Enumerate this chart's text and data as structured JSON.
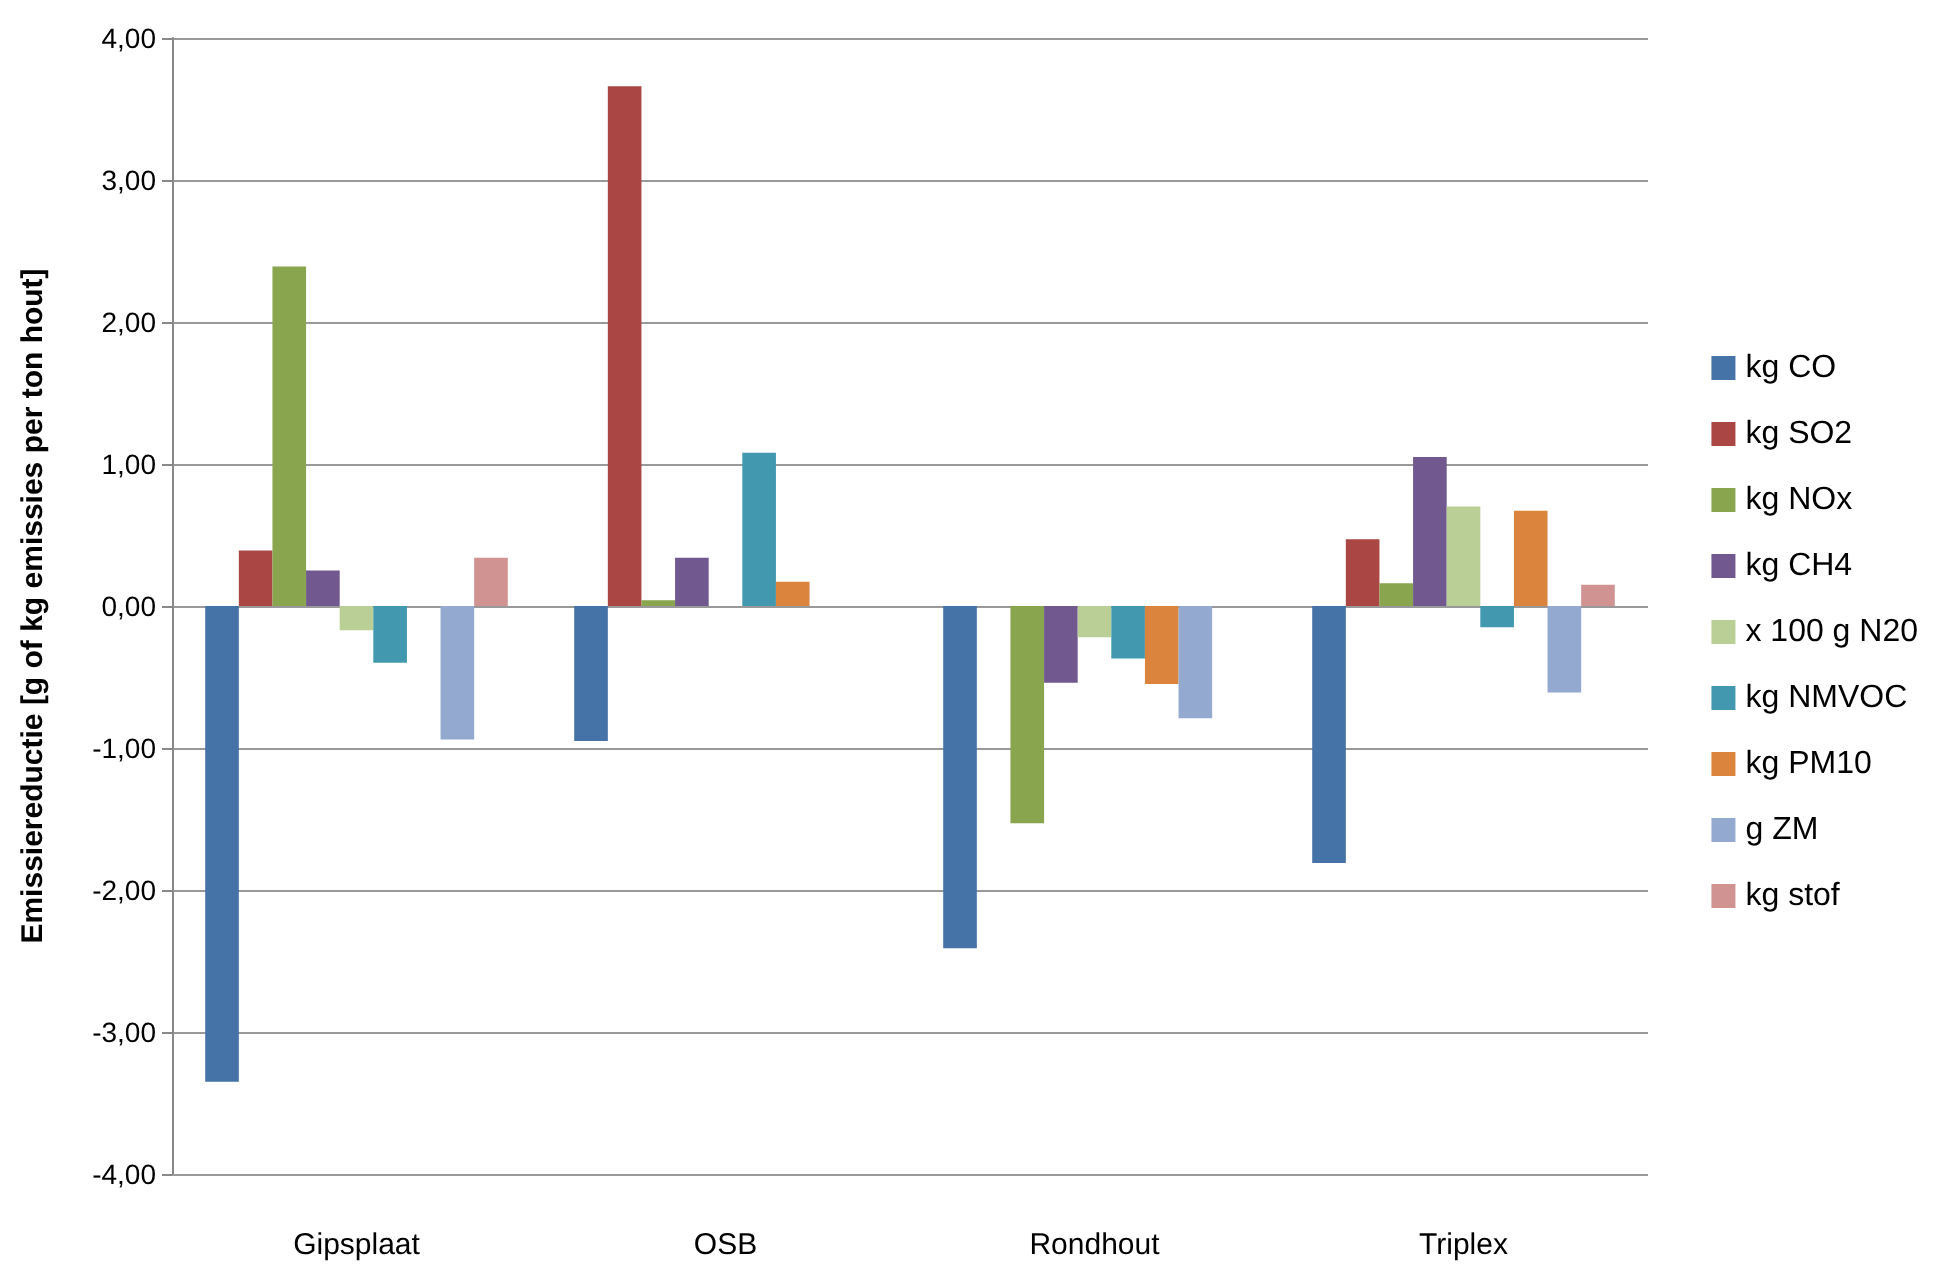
{
  "chart_data": {
    "type": "bar",
    "ylabel": "Emissiereductie [g of kg emissies per ton hout]",
    "categories": [
      "Gipsplaat",
      "OSB",
      "Rondhout",
      "Triplex"
    ],
    "series": [
      {
        "name": "kg CO",
        "color": "#4572a7",
        "values": [
          -3.35,
          -0.95,
          -2.41,
          -1.81
        ]
      },
      {
        "name": "kg SO2",
        "color": "#aa4643",
        "values": [
          0.39,
          3.66,
          null,
          0.47
        ]
      },
      {
        "name": "kg NOx",
        "color": "#89a54e",
        "values": [
          2.39,
          0.04,
          -1.53,
          0.16
        ]
      },
      {
        "name": "kg CH4",
        "color": "#71588f",
        "values": [
          0.25,
          0.34,
          -0.54,
          1.05
        ]
      },
      {
        "name": "x 100 g N20",
        "color": "#b9cf95",
        "values": [
          -0.17,
          null,
          -0.22,
          0.7
        ]
      },
      {
        "name": "kg NMVOC",
        "color": "#4198af",
        "values": [
          -0.4,
          1.08,
          -0.37,
          -0.15
        ]
      },
      {
        "name": "kg PM10",
        "color": "#db843d",
        "values": [
          null,
          0.17,
          -0.55,
          0.67
        ]
      },
      {
        "name": "g ZM",
        "color": "#93a9cf",
        "values": [
          -0.94,
          null,
          -0.79,
          -0.61
        ]
      },
      {
        "name": "kg stof",
        "color": "#d19392",
        "values": [
          0.34,
          null,
          null,
          0.15
        ]
      }
    ],
    "ylim": [
      -4,
      4
    ],
    "yticks": [
      {
        "value": -4,
        "label": "-4,00"
      },
      {
        "value": -3,
        "label": "-3,00"
      },
      {
        "value": -2,
        "label": "-2,00"
      },
      {
        "value": -1,
        "label": "-1,00"
      },
      {
        "value": 0,
        "label": "0,00"
      },
      {
        "value": 1,
        "label": "1,00"
      },
      {
        "value": 2,
        "label": "2,00"
      },
      {
        "value": 3,
        "label": "3,00"
      },
      {
        "value": 4,
        "label": "4,00"
      }
    ],
    "grid": "y",
    "legend": "right"
  }
}
